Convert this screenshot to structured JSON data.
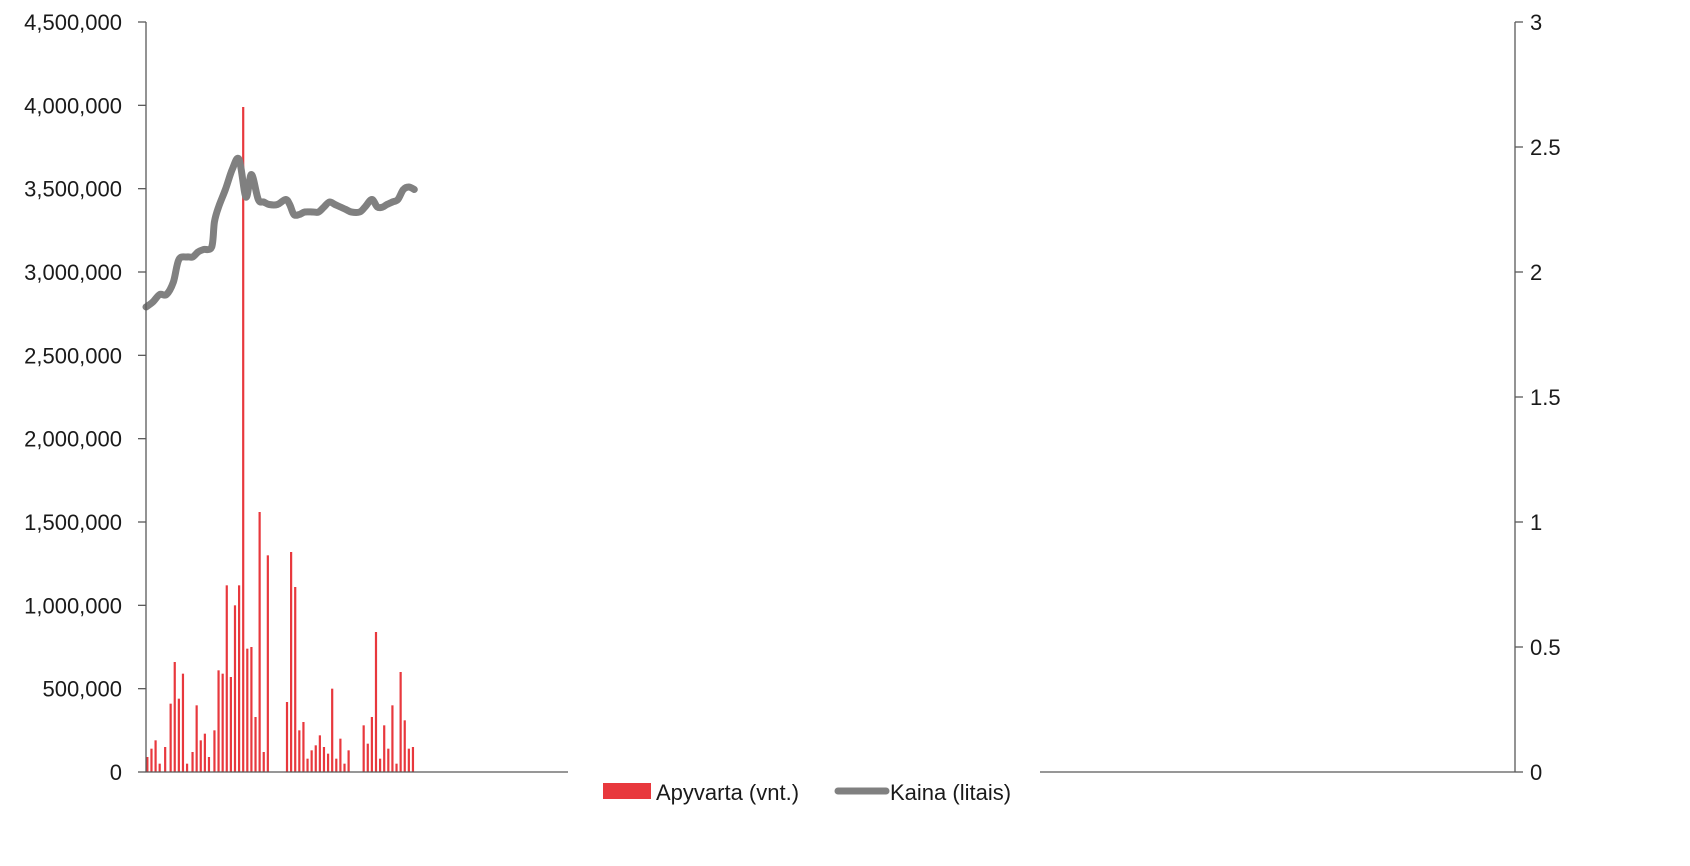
{
  "chart_data": {
    "type": "bar+line",
    "title": "",
    "xlabel": "",
    "ylabel_left": "",
    "ylabel_right": "",
    "x_range": [
      0,
      100
    ],
    "y_left": {
      "range": [
        0,
        4500000
      ],
      "ticks": [
        0,
        500000,
        1000000,
        1500000,
        2000000,
        2500000,
        3000000,
        3500000,
        4000000,
        4500000
      ],
      "tick_labels": [
        "0",
        "500,000",
        "1,000,000",
        "1,500,000",
        "2,000,000",
        "2,500,000",
        "3,000,000",
        "3,500,000",
        "4,000,000",
        "4,500,000"
      ]
    },
    "y_right": {
      "range": [
        0,
        3
      ],
      "ticks": [
        0,
        0.5,
        1,
        1.5,
        2,
        2.5,
        3
      ],
      "tick_labels": [
        "0",
        "0.5",
        "1",
        "1.5",
        "2",
        "2.5",
        "3"
      ]
    },
    "grid": false,
    "legend_position": "bottom-center",
    "legend": [
      {
        "label": "Apyvarta (vnt.)",
        "color": "#e8383d",
        "kind": "bar"
      },
      {
        "label": "Kaina (litais)",
        "color": "#808080",
        "kind": "line"
      }
    ],
    "series": [
      {
        "name": "Apyvarta (vnt.)",
        "axis": "left",
        "type": "bar",
        "color": "#e8383d",
        "points": [
          [
            0.1,
            90000
          ],
          [
            0.4,
            140000
          ],
          [
            0.7,
            190000
          ],
          [
            1.0,
            50000
          ],
          [
            1.4,
            150000
          ],
          [
            1.8,
            410000
          ],
          [
            2.1,
            660000
          ],
          [
            2.4,
            440000
          ],
          [
            2.7,
            590000
          ],
          [
            3.0,
            50000
          ],
          [
            3.4,
            120000
          ],
          [
            3.7,
            400000
          ],
          [
            4.0,
            190000
          ],
          [
            4.3,
            230000
          ],
          [
            4.6,
            90000
          ],
          [
            5.0,
            250000
          ],
          [
            5.3,
            610000
          ],
          [
            5.6,
            590000
          ],
          [
            5.9,
            1120000
          ],
          [
            6.2,
            570000
          ],
          [
            6.5,
            1000000
          ],
          [
            6.8,
            1120000
          ],
          [
            7.1,
            3990000
          ],
          [
            7.4,
            740000
          ],
          [
            7.7,
            750000
          ],
          [
            8.0,
            330000
          ],
          [
            8.3,
            1560000
          ],
          [
            8.6,
            120000
          ],
          [
            8.9,
            1300000
          ],
          [
            10.3,
            420000
          ],
          [
            10.6,
            1320000
          ],
          [
            10.9,
            1110000
          ],
          [
            11.2,
            250000
          ],
          [
            11.5,
            300000
          ],
          [
            11.8,
            80000
          ],
          [
            12.1,
            130000
          ],
          [
            12.4,
            160000
          ],
          [
            12.7,
            220000
          ],
          [
            13.0,
            150000
          ],
          [
            13.3,
            110000
          ],
          [
            13.6,
            500000
          ],
          [
            13.9,
            80000
          ],
          [
            14.2,
            200000
          ],
          [
            14.5,
            50000
          ],
          [
            14.8,
            130000
          ],
          [
            15.9,
            280000
          ],
          [
            16.2,
            170000
          ],
          [
            16.5,
            330000
          ],
          [
            16.8,
            840000
          ],
          [
            17.1,
            80000
          ],
          [
            17.4,
            280000
          ],
          [
            17.7,
            140000
          ],
          [
            18.0,
            400000
          ],
          [
            18.3,
            50000
          ],
          [
            18.6,
            600000
          ],
          [
            18.9,
            310000
          ],
          [
            19.2,
            140000
          ],
          [
            19.5,
            150000
          ]
        ]
      },
      {
        "name": "Kaina (litais)",
        "axis": "right",
        "type": "line",
        "color": "#808080",
        "points": [
          [
            0.0,
            1.86
          ],
          [
            0.5,
            1.88
          ],
          [
            1.0,
            1.91
          ],
          [
            1.5,
            1.91
          ],
          [
            2.0,
            1.96
          ],
          [
            2.4,
            2.05
          ],
          [
            3.0,
            2.06
          ],
          [
            3.4,
            2.06
          ],
          [
            3.8,
            2.08
          ],
          [
            4.2,
            2.09
          ],
          [
            4.8,
            2.1
          ],
          [
            5.0,
            2.2
          ],
          [
            5.3,
            2.26
          ],
          [
            5.8,
            2.33
          ],
          [
            6.3,
            2.41
          ],
          [
            6.8,
            2.45
          ],
          [
            7.3,
            2.3
          ],
          [
            7.7,
            2.39
          ],
          [
            8.2,
            2.29
          ],
          [
            8.6,
            2.28
          ],
          [
            9.0,
            2.27
          ],
          [
            9.6,
            2.27
          ],
          [
            10.2,
            2.29
          ],
          [
            10.5,
            2.27
          ],
          [
            10.8,
            2.23
          ],
          [
            11.2,
            2.23
          ],
          [
            11.6,
            2.24
          ],
          [
            12.2,
            2.24
          ],
          [
            12.6,
            2.24
          ],
          [
            13.0,
            2.26
          ],
          [
            13.4,
            2.28
          ],
          [
            13.8,
            2.27
          ],
          [
            14.2,
            2.26
          ],
          [
            14.6,
            2.25
          ],
          [
            15.0,
            2.24
          ],
          [
            15.6,
            2.24
          ],
          [
            16.0,
            2.26
          ],
          [
            16.5,
            2.29
          ],
          [
            16.9,
            2.26
          ],
          [
            17.3,
            2.26
          ],
          [
            17.6,
            2.27
          ],
          [
            18.0,
            2.28
          ],
          [
            18.4,
            2.29
          ],
          [
            18.8,
            2.33
          ],
          [
            19.2,
            2.34
          ],
          [
            19.6,
            2.33
          ]
        ]
      }
    ]
  }
}
